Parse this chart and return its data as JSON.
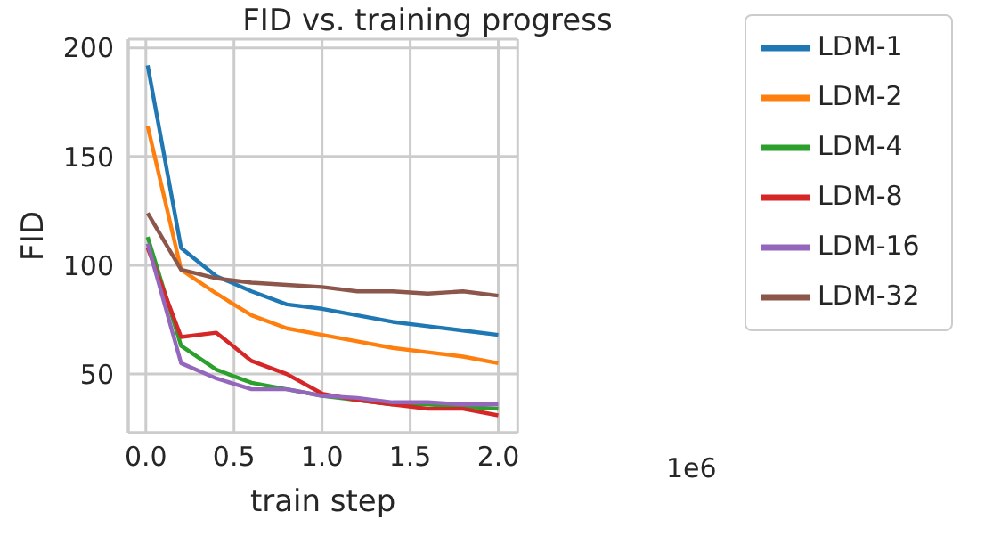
{
  "chart_data": {
    "type": "line",
    "title": "FID vs. training progress",
    "xlabel": "train step",
    "ylabel": "FID",
    "x": [
      0.01,
      0.2,
      0.4,
      0.6,
      0.8,
      1.0,
      1.2,
      1.4,
      1.6,
      1.8,
      2.0
    ],
    "series": [
      {
        "name": "LDM-1",
        "color": "#1f77b4",
        "values": [
          192,
          108,
          95,
          88,
          82,
          80,
          77,
          74,
          72,
          70,
          68
        ]
      },
      {
        "name": "LDM-2",
        "color": "#ff7f0e",
        "values": [
          164,
          98,
          87,
          77,
          71,
          68,
          65,
          62,
          60,
          58,
          55
        ]
      },
      {
        "name": "LDM-4",
        "color": "#2ca02c",
        "values": [
          113,
          63,
          52,
          46,
          43,
          40,
          38,
          36,
          36,
          35,
          34
        ]
      },
      {
        "name": "LDM-8",
        "color": "#d62728",
        "values": [
          108,
          67,
          69,
          56,
          50,
          41,
          38,
          36,
          34,
          34,
          31
        ]
      },
      {
        "name": "LDM-16",
        "color": "#9467bd",
        "values": [
          110,
          55,
          48,
          43,
          43,
          40,
          39,
          37,
          37,
          36,
          36
        ]
      },
      {
        "name": "LDM-32",
        "color": "#8c564b",
        "values": [
          124,
          98,
          94,
          92,
          91,
          90,
          88,
          88,
          87,
          88,
          86
        ]
      }
    ],
    "xlim": [
      -0.1,
      2.11
    ],
    "xticks": [
      {
        "value": 0,
        "label": "0.0"
      },
      {
        "value": 0.5,
        "label": "0.5"
      },
      {
        "value": 1,
        "label": "1.0"
      },
      {
        "value": 1.5,
        "label": "1.5"
      },
      {
        "value": 2,
        "label": "2.0"
      }
    ],
    "ylim": [
      23,
      204
    ],
    "yticks": [
      50,
      100,
      150,
      200
    ],
    "annotations": [
      "1e6"
    ],
    "grid": true,
    "legend": "top right",
    "marker": "none",
    "line_style": "solid"
  }
}
